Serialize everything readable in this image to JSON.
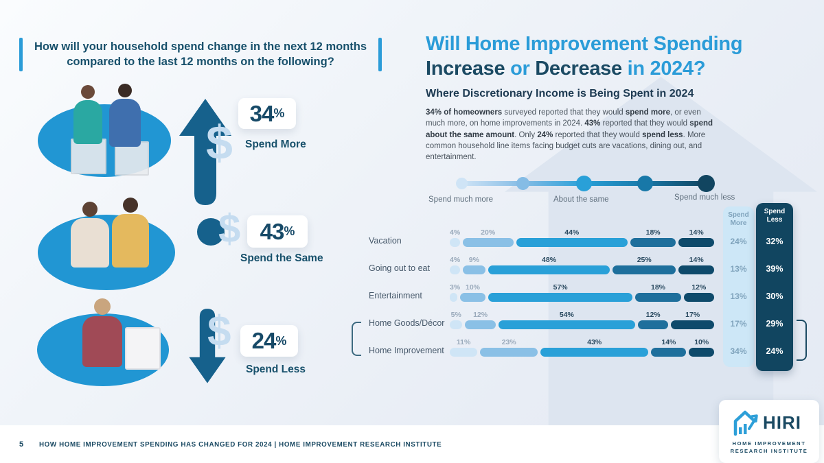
{
  "colors": {
    "blue": "#2b9cd8",
    "navy": "#1b4a63",
    "arrow": "#16618c",
    "photo_ellipse": "#2196d3",
    "pct_light": "#9aaabb",
    "pct_dark": "#2a4a60"
  },
  "left_panel": {
    "question": "How will your household spend change in the next 12 months compared to the last 12 months on the following?",
    "stats": [
      {
        "value": "34",
        "pct": "%",
        "label": "Spend More",
        "direction": "up",
        "dollar": "$"
      },
      {
        "value": "43",
        "pct": "%",
        "label": "Spend the Same",
        "direction": "same",
        "dollar": "$"
      },
      {
        "value": "24",
        "pct": "%",
        "label": "Spend Less",
        "direction": "down",
        "dollar": "$"
      }
    ]
  },
  "right_panel": {
    "heading_line1": [
      {
        "t": "Will Home Improvement Spending",
        "c": "blue"
      }
    ],
    "heading_line2": [
      {
        "t": "Increase",
        "c": "navy"
      },
      {
        "t": " or ",
        "c": "blue"
      },
      {
        "t": "Decrease",
        "c": "navy"
      },
      {
        "t": " in 2024?",
        "c": "blue"
      }
    ],
    "subtitle": "Where Discretionary Income is Being Spent in 2024",
    "paragraph": [
      {
        "t": "34% of homeowners",
        "b": 1
      },
      {
        "t": " surveyed reported that they would ",
        "b": 0
      },
      {
        "t": "spend more",
        "b": 1
      },
      {
        "t": ", or even much more, on home improvements in 2024. ",
        "b": 0
      },
      {
        "t": "43%",
        "b": 1
      },
      {
        "t": " reported that they would ",
        "b": 0
      },
      {
        "t": "spend about the same amount",
        "b": 1
      },
      {
        "t": ". Only ",
        "b": 0
      },
      {
        "t": "24%",
        "b": 1
      },
      {
        "t": " reported that they would ",
        "b": 0
      },
      {
        "t": "spend less",
        "b": 1
      },
      {
        "t": ". More common household line items facing budget cuts are vacations, dining out, and entertainment.",
        "b": 0
      }
    ]
  },
  "chart_data": {
    "type": "bar",
    "subtype": "horizontal-stacked-100pct",
    "title": "Where Discretionary Income is Being Spent in 2024",
    "scale_labels": [
      "Spend much more",
      "About the same",
      "Spend much less"
    ],
    "scale_dot_colors": [
      "#cfe4f6",
      "#85bce5",
      "#29a0d8",
      "#1878a8",
      "#114560"
    ],
    "segment_colors": [
      "#cfe5f6",
      "#8ac0e6",
      "#29a0d8",
      "#1e6f9c",
      "#0e4a6b"
    ],
    "categories": [
      "Vacation",
      "Going out to eat",
      "Entertainment",
      "Home Goods/Décor",
      "Home Improvement"
    ],
    "series": [
      {
        "name": "Vacation",
        "values": [
          4,
          20,
          44,
          18,
          14
        ]
      },
      {
        "name": "Going out to eat",
        "values": [
          4,
          9,
          48,
          25,
          14
        ]
      },
      {
        "name": "Entertainment",
        "values": [
          3,
          10,
          57,
          18,
          12
        ]
      },
      {
        "name": "Home Goods/Décor",
        "values": [
          5,
          12,
          54,
          12,
          17
        ]
      },
      {
        "name": "Home Improvement",
        "values": [
          11,
          23,
          43,
          14,
          10
        ]
      }
    ],
    "summary_columns": {
      "more_header": "Spend More",
      "less_header": "Spend Less",
      "spend_more": [
        "24%",
        "13%",
        "13%",
        "17%",
        "34%"
      ],
      "spend_less": [
        "32%",
        "39%",
        "30%",
        "29%",
        "24%"
      ]
    }
  },
  "footer": {
    "page": "5",
    "text": "HOW HOME IMPROVEMENT SPENDING HAS CHANGED FOR 2024  |  HOME IMPROVEMENT RESEARCH INSTITUTE"
  },
  "logo": {
    "name": "HIRI",
    "sub1": "HOME IMPROVEMENT",
    "sub2": "RESEARCH INSTITUTE"
  }
}
